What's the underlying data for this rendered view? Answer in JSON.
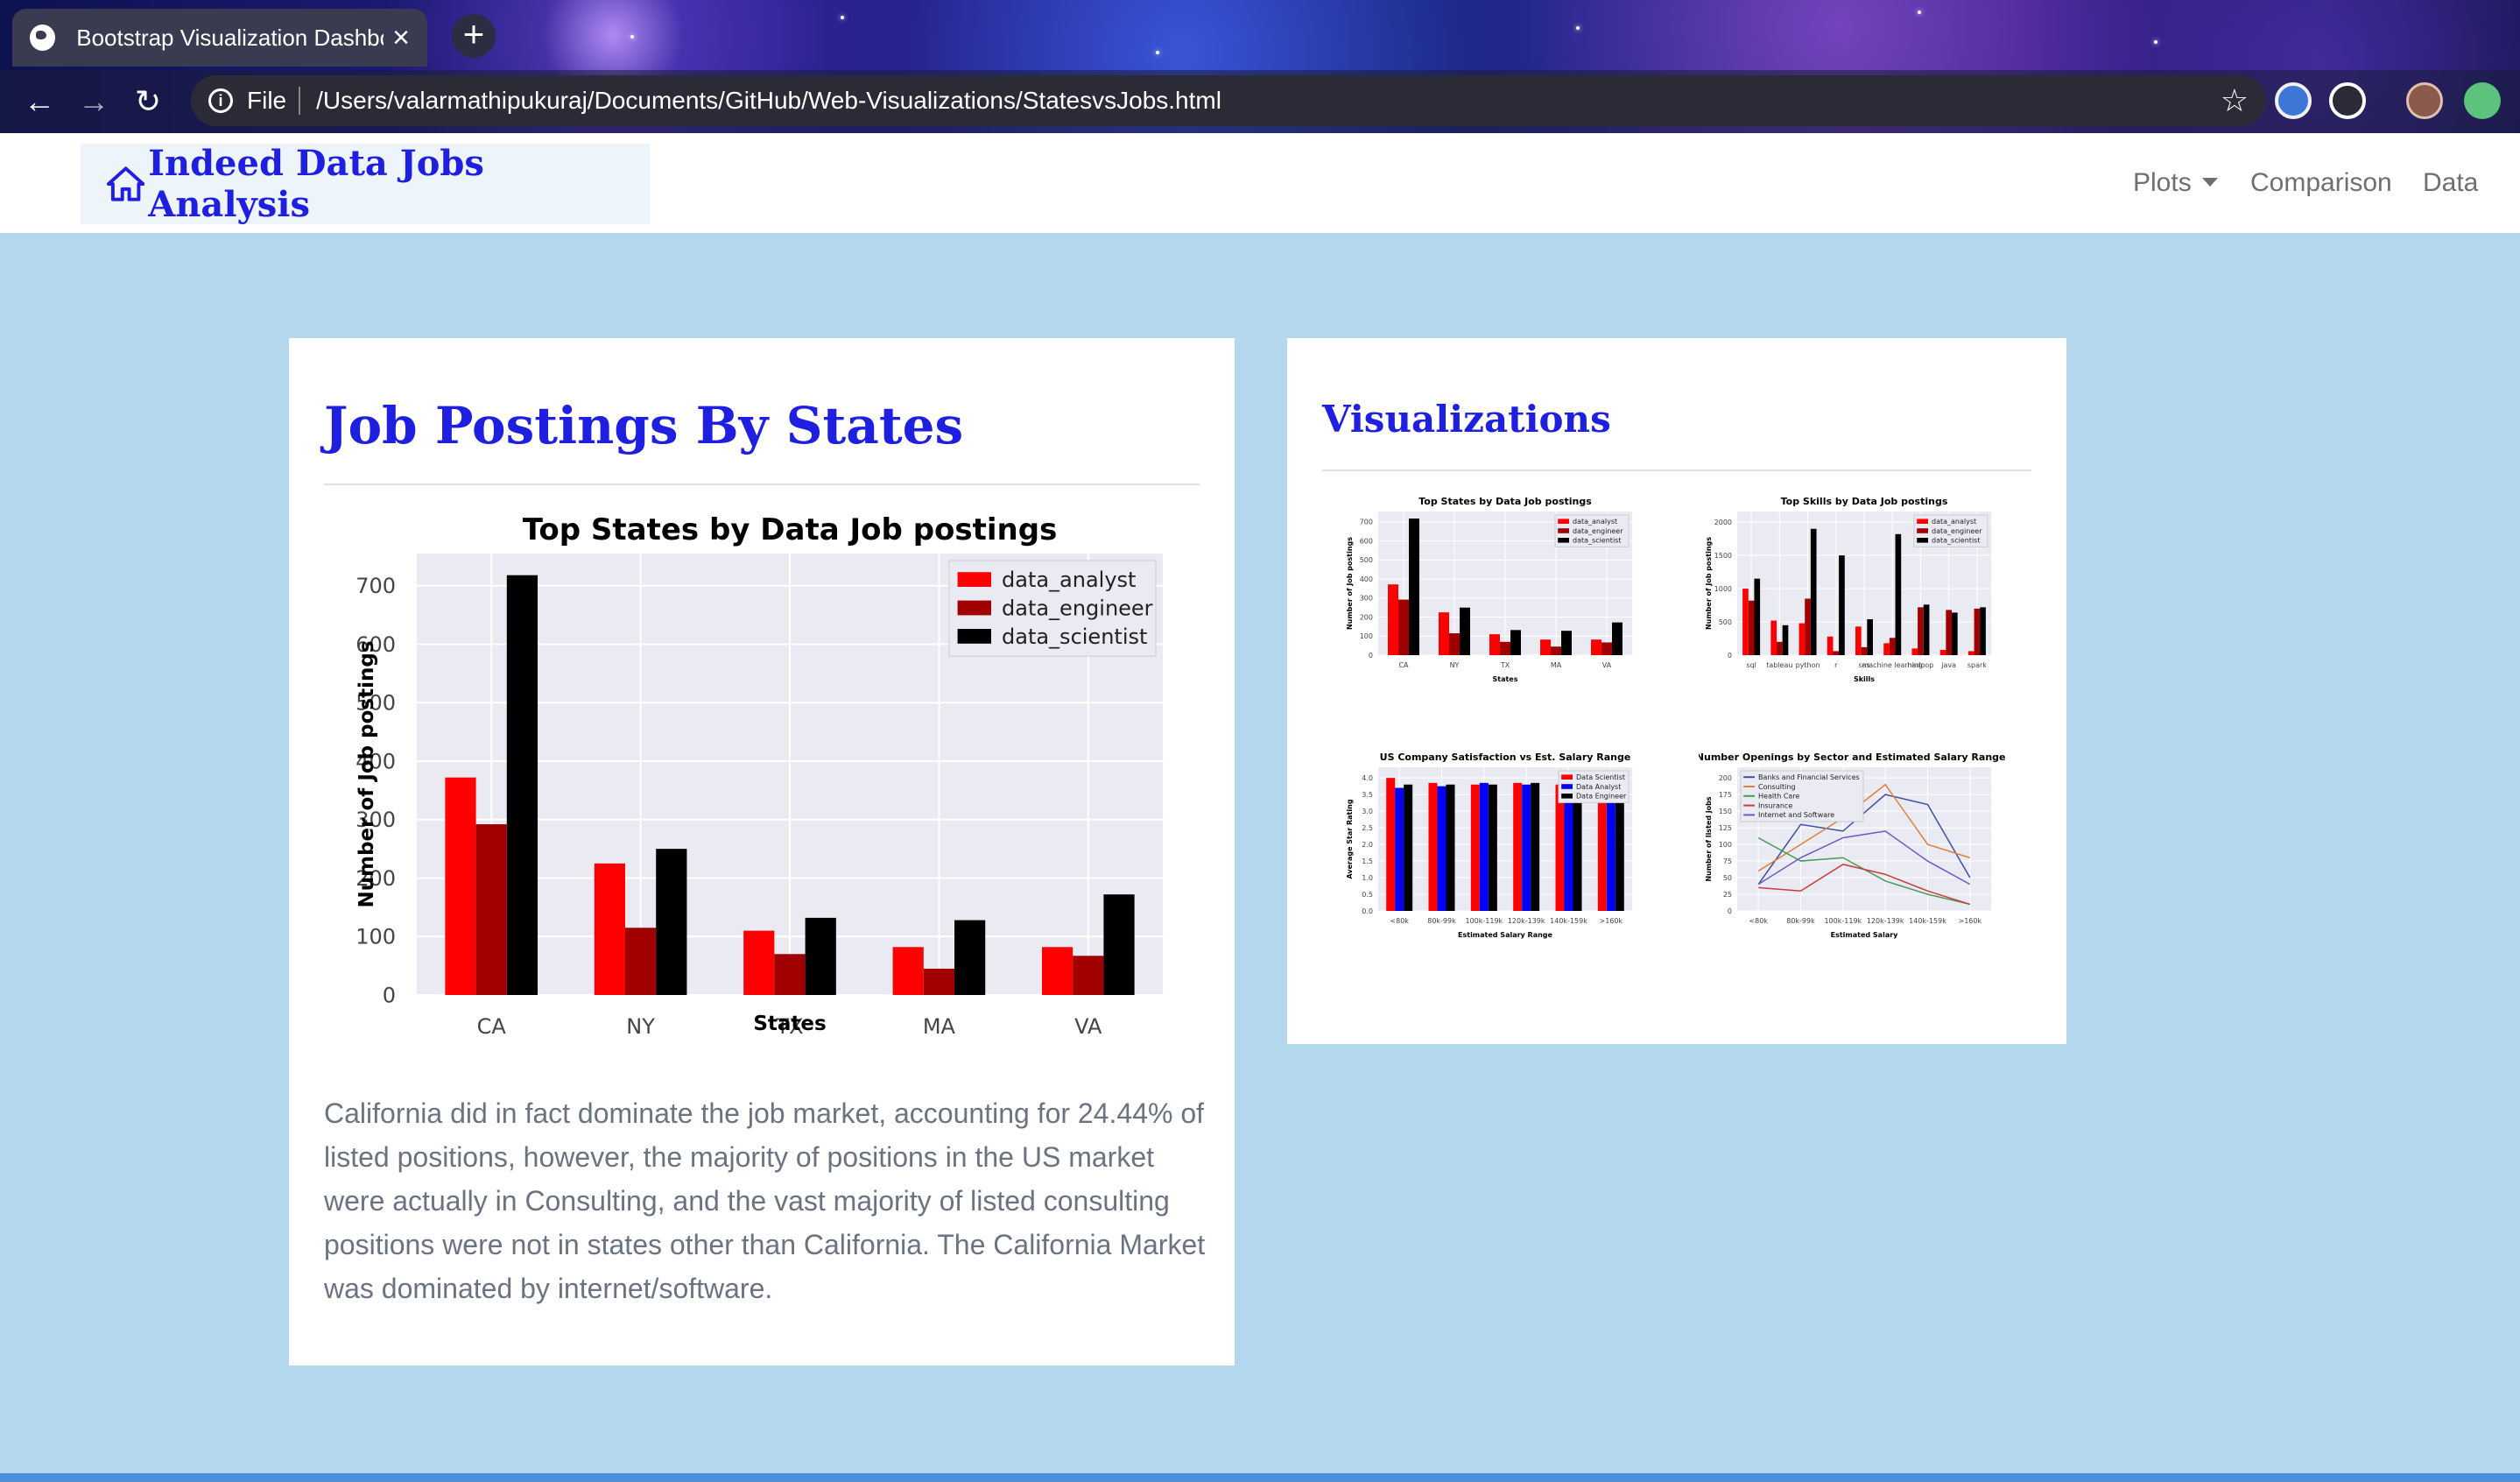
{
  "browser": {
    "tab_title": "Bootstrap Visualization Dashboard",
    "address_scheme": "File",
    "address_url": "/Users/valarmathipukuraj/Documents/GitHub/Web-Visualizations/StatesvsJobs.html"
  },
  "navbar": {
    "brand": "Indeed Data Jobs Analysis",
    "links": {
      "plots": "Plots",
      "comparison": "Comparison",
      "data": "Data"
    }
  },
  "main": {
    "heading": "Job Postings By States",
    "description": "California did in fact dominate the job market, accounting for 24.44% of listed positions, however, the majority of positions in the US market were actually in Consulting, and the vast majority of listed consulting positions were not in states other than California. The California Market was dominated by internet/software."
  },
  "sidebar": {
    "heading": "Visualizations",
    "thumbnails": [
      {
        "title": "Top States by Data Job postings",
        "xlabel": "States",
        "ylabel": "Number of Job postings"
      },
      {
        "title": "Top Skills by Data Job postings",
        "xlabel": "Skills",
        "ylabel": "Number of Job postings"
      },
      {
        "title": "US Company Satisfaction vs Est. Salary Range",
        "xlabel": "Estimated Salary Range",
        "ylabel": "Average Star Rating"
      },
      {
        "title": "Number Openings by Sector and Estimated Salary Range (US)",
        "xlabel": "Estimated Salary",
        "ylabel": "Number of listed jobs"
      }
    ]
  },
  "colors": {
    "analyst": "#ff0000",
    "engineer": "#a00000",
    "scientist": "#000000",
    "heading": "#1f1fe0",
    "page_bg": "#b3d8ee"
  },
  "chart_data": [
    {
      "type": "bar",
      "title": "Top States by Data Job postings",
      "xlabel": "States",
      "ylabel": "Number of Job postings",
      "categories": [
        "CA",
        "NY",
        "TX",
        "MA",
        "VA"
      ],
      "series": [
        {
          "name": "data_analyst",
          "color": "#ff0000",
          "values": [
            372,
            225,
            110,
            82,
            82
          ]
        },
        {
          "name": "data_engineer",
          "color": "#a00000",
          "values": [
            292,
            115,
            70,
            45,
            67
          ]
        },
        {
          "name": "data_scientist",
          "color": "#000000",
          "values": [
            718,
            250,
            132,
            128,
            172
          ]
        }
      ],
      "yticks": [
        0,
        100,
        200,
        300,
        400,
        500,
        600,
        700
      ],
      "ylim": [
        0,
        755
      ],
      "legend": "top-right"
    },
    {
      "type": "bar",
      "title": "Top Skills by Data Job postings",
      "xlabel": "Skills",
      "ylabel": "Number of Job postings",
      "categories": [
        "sql",
        "tableau",
        "python",
        "r",
        "sas",
        "machine learning",
        "hadoop",
        "java",
        "spark"
      ],
      "series": [
        {
          "name": "data_analyst",
          "color": "#ff0000",
          "values": [
            1000,
            520,
            480,
            280,
            430,
            180,
            100,
            80,
            60
          ]
        },
        {
          "name": "data_engineer",
          "color": "#a00000",
          "values": [
            820,
            200,
            850,
            60,
            120,
            260,
            720,
            680,
            700
          ]
        },
        {
          "name": "data_scientist",
          "color": "#000000",
          "values": [
            1150,
            450,
            1900,
            1500,
            540,
            1820,
            760,
            640,
            720
          ]
        }
      ],
      "yticks": [
        0,
        500,
        1000,
        1500,
        2000
      ],
      "legend": "top-right"
    },
    {
      "type": "bar",
      "title": "US Company Satisfaction vs Est. Salary Range",
      "xlabel": "Estimated Salary Range",
      "ylabel": "Average Star Rating",
      "categories": [
        "<80k",
        "80k-99k",
        "100k-119k",
        "120k-139k",
        "140k-159k",
        ">160k"
      ],
      "series": [
        {
          "name": "Data Scientist",
          "color": "#ff0000",
          "values": [
            4.0,
            3.85,
            3.8,
            3.85,
            3.8,
            3.9
          ]
        },
        {
          "name": "Data Analyst",
          "color": "#0000ff",
          "values": [
            3.7,
            3.75,
            3.85,
            3.8,
            3.85,
            3.8
          ]
        },
        {
          "name": "Data Engineer",
          "color": "#000000",
          "values": [
            3.8,
            3.8,
            3.8,
            3.85,
            3.8,
            3.85
          ]
        }
      ],
      "yticks": [
        0.0,
        0.5,
        1.0,
        1.5,
        2.0,
        2.5,
        3.0,
        3.5,
        4.0
      ],
      "legend": "top-right"
    },
    {
      "type": "line",
      "title": "Number Openings by Sector and Estimated Salary Range (US)",
      "xlabel": "Estimated Salary",
      "ylabel": "Number of listed jobs",
      "x": [
        "<80k",
        "80k-99k",
        "100k-119k",
        "120k-139k",
        "140k-159k",
        ">160k"
      ],
      "series": [
        {
          "name": "Banks and Financial Services",
          "color": "#3c4ea8",
          "values": [
            40,
            130,
            120,
            175,
            160,
            50
          ]
        },
        {
          "name": "Consulting",
          "color": "#e0803a",
          "values": [
            60,
            100,
            140,
            190,
            100,
            80
          ]
        },
        {
          "name": "Health Care",
          "color": "#4a9a5a",
          "values": [
            110,
            75,
            80,
            45,
            25,
            10
          ]
        },
        {
          "name": "Insurance",
          "color": "#c83c3c",
          "values": [
            35,
            30,
            70,
            55,
            30,
            10
          ]
        },
        {
          "name": "Internet and Software",
          "color": "#6a5ac8",
          "values": [
            40,
            80,
            110,
            120,
            75,
            40
          ]
        }
      ],
      "yticks": [
        0,
        25,
        50,
        75,
        100,
        125,
        150,
        175,
        200
      ],
      "legend": "top-left"
    }
  ]
}
